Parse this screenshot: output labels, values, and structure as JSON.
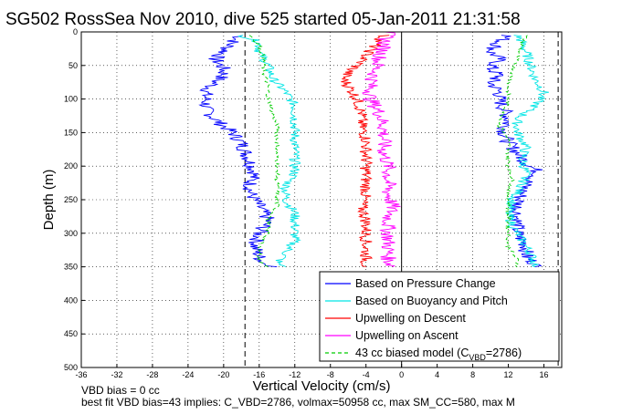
{
  "chart_data": {
    "type": "line",
    "title": "SG502 RossSea Nov 2010, dive 525 started 05-Jan-2011 21:31:58",
    "xlabel": "Vertical Velocity (cm/s)",
    "ylabel": "Depth (m)",
    "xlim": [
      -36,
      18
    ],
    "ylim": [
      500,
      0
    ],
    "y_reversed": true,
    "xticks": [
      -36,
      -32,
      -28,
      -24,
      -20,
      -16,
      -12,
      -8,
      -4,
      0,
      4,
      8,
      12,
      16
    ],
    "yticks": [
      0,
      50,
      100,
      150,
      200,
      250,
      300,
      350,
      400,
      450,
      500
    ],
    "grid": true,
    "legend_position": "lower-right",
    "vertical_lines": [
      {
        "x": -17.6,
        "style": "dashed"
      },
      {
        "x": 0,
        "style": "solid"
      },
      {
        "x": 17.6,
        "style": "dashed"
      }
    ],
    "series": [
      {
        "name": "Based on Pressure Change",
        "color": "#0000ff",
        "style": "solid",
        "depth": [
          5,
          15,
          30,
          40,
          55,
          65,
          75,
          90,
          100,
          115,
          130,
          150,
          165,
          180,
          195,
          210,
          225,
          240,
          260,
          280,
          300,
          320,
          335,
          345,
          350
        ],
        "descent": [
          -18,
          -19,
          -20,
          -21,
          -20,
          -20,
          -21,
          -22,
          -22,
          -22,
          -21,
          -19,
          -18,
          -17.5,
          -17,
          -16.5,
          -17,
          -17,
          -16,
          -15,
          -16,
          -16.5,
          -16,
          -15.5,
          -14
        ],
        "ascent": [
          12,
          11,
          10,
          11,
          10,
          11,
          10,
          11,
          11,
          11.5,
          12,
          11.5,
          12,
          13,
          14,
          15.5,
          14,
          13.5,
          13,
          13,
          13,
          14,
          14,
          15,
          15
        ]
      },
      {
        "name": "Based on Buoyancy and Pitch",
        "color": "#00e5e5",
        "style": "solid",
        "depth": [
          5,
          15,
          30,
          50,
          70,
          90,
          110,
          130,
          150,
          170,
          190,
          210,
          230,
          250,
          270,
          290,
          310,
          330,
          345,
          350
        ],
        "descent": [
          -18,
          -16,
          -16,
          -15,
          -14.5,
          -13,
          -12,
          -12,
          -12,
          -12,
          -12,
          -12,
          -13,
          -13,
          -12,
          -12,
          -12,
          -13,
          -14,
          -13
        ],
        "ascent": [
          13,
          13.5,
          14,
          14.5,
          15,
          16,
          15,
          13,
          13,
          14,
          13.5,
          14,
          13.5,
          12.5,
          12,
          12.5,
          13.5,
          14.5,
          15,
          15
        ]
      },
      {
        "name": "Upwelling on Descent",
        "color": "#ff0000",
        "style": "solid",
        "depth": [
          5,
          20,
          35,
          50,
          60,
          70,
          80,
          100,
          120,
          140,
          160,
          180,
          200,
          220,
          240,
          260,
          280,
          300,
          320,
          340,
          350
        ],
        "values": [
          -2,
          -3,
          -4,
          -5,
          -6,
          -6.5,
          -6,
          -5,
          -4.5,
          -4.5,
          -4,
          -4,
          -4,
          -4,
          -4,
          -4.5,
          -4,
          -4,
          -4,
          -4,
          -4
        ]
      },
      {
        "name": "Upwelling on Ascent",
        "color": "#ff00ff",
        "style": "solid",
        "depth": [
          0,
          20,
          40,
          60,
          80,
          100,
          120,
          140,
          160,
          180,
          200,
          220,
          240,
          260,
          280,
          300,
          320,
          340,
          350
        ],
        "values": [
          -1.5,
          -2,
          -2.5,
          -3,
          -3.5,
          -3.5,
          -2.5,
          -2,
          -2,
          -2,
          -1.5,
          -1.5,
          -1.5,
          -1,
          -1.5,
          -1.5,
          -1.5,
          -1.5,
          -1
        ]
      },
      {
        "name": "43 cc biased model (C_VBD=2786)",
        "legend_main": "43 cc biased model (C",
        "legend_sub": "VBD",
        "legend_tail": "=2786)",
        "color": "#00cc00",
        "style": "dashed",
        "depth": [
          5,
          20,
          40,
          60,
          80,
          100,
          120,
          140,
          160,
          180,
          200,
          220,
          240,
          260,
          280,
          300,
          320,
          340,
          350
        ],
        "descent": [
          -17,
          -16,
          -15.5,
          -15.5,
          -15,
          -15,
          -14.5,
          -14,
          -14,
          -14,
          -14,
          -14,
          -14,
          -14,
          -15,
          -15,
          -16,
          -16,
          -15
        ],
        "ascent": [
          14,
          13.5,
          13,
          12.5,
          12,
          12,
          11.5,
          11,
          12,
          12,
          12,
          12.5,
          12,
          12,
          12,
          12,
          12,
          13,
          13
        ]
      }
    ]
  },
  "footer": {
    "line1": "VBD bias = 0 cc",
    "line2": "best fit VBD bias=43 implies: C_VBD=2786, volmax=50958 cc, max SM_CC=580, max M"
  }
}
